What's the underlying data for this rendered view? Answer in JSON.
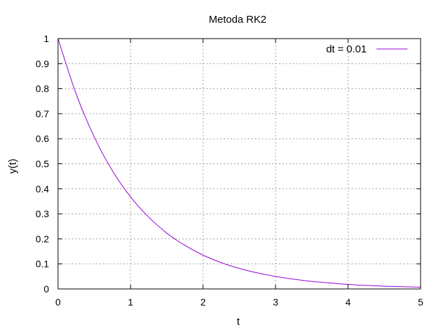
{
  "chart_data": {
    "type": "line",
    "title": "Metoda RK2",
    "xlabel": "t",
    "ylabel": "y(t)",
    "xlim": [
      0,
      5
    ],
    "ylim": [
      0,
      1
    ],
    "xticks": [
      0,
      1,
      2,
      3,
      4,
      5
    ],
    "yticks": [
      0,
      0.1,
      0.2,
      0.3,
      0.4,
      0.5,
      0.6,
      0.7,
      0.8,
      0.9,
      1
    ],
    "grid": true,
    "legend_position": "top-right",
    "series": [
      {
        "name": "dt = 0.01",
        "color": "#9400d3",
        "x": [
          0,
          0.25,
          0.5,
          0.75,
          1,
          1.25,
          1.5,
          1.75,
          2,
          2.25,
          2.5,
          2.75,
          3,
          3.25,
          3.5,
          3.75,
          4,
          4.25,
          4.5,
          4.75,
          5
        ],
        "y": [
          1,
          0.779,
          0.607,
          0.472,
          0.368,
          0.287,
          0.223,
          0.174,
          0.135,
          0.105,
          0.082,
          0.064,
          0.05,
          0.039,
          0.03,
          0.024,
          0.018,
          0.014,
          0.011,
          0.009,
          0.007
        ]
      }
    ]
  }
}
